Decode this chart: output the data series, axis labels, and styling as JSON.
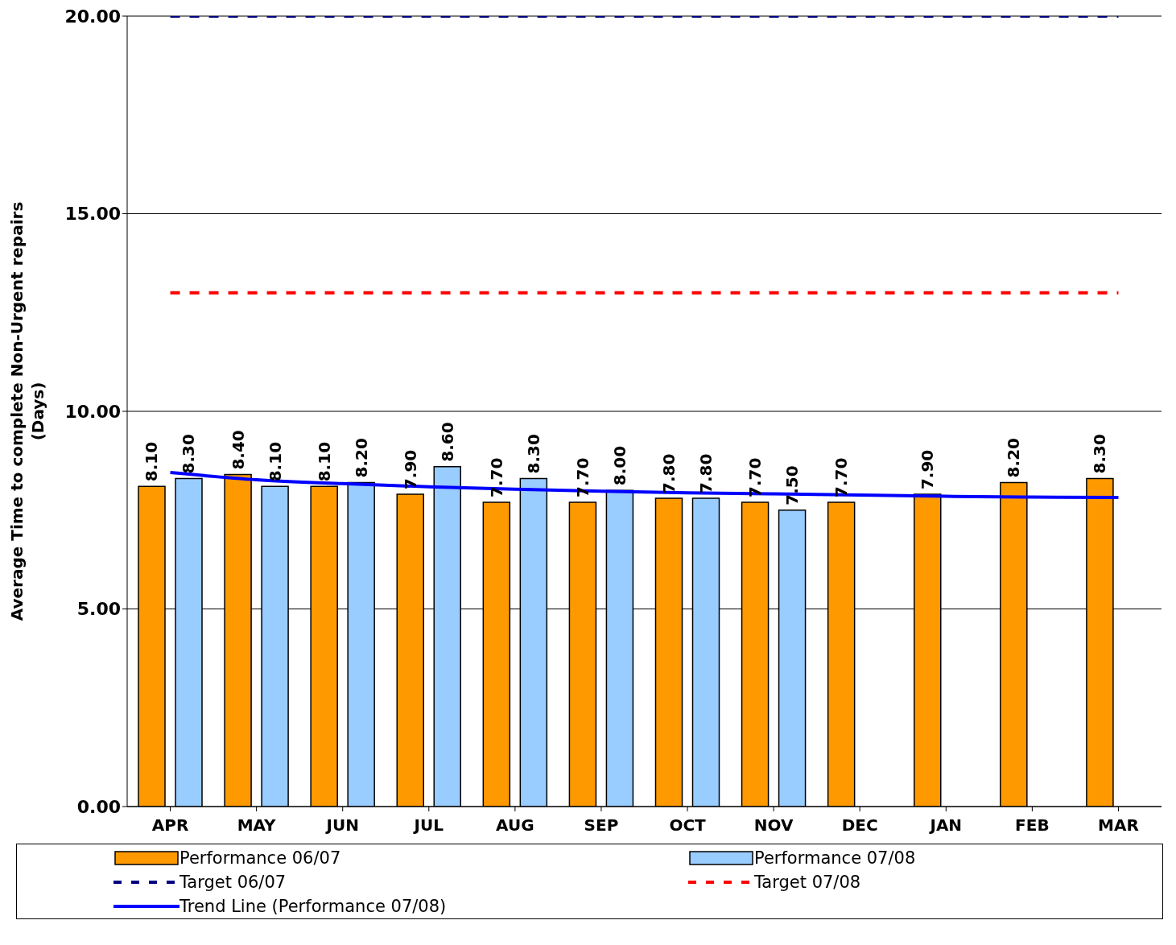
{
  "chart_data": {
    "type": "bar",
    "ylabel": "Average Time to complete Non-Urgent repairs (Days)",
    "categories": [
      "APR",
      "MAY",
      "JUN",
      "JUL",
      "AUG",
      "SEP",
      "OCT",
      "NOV",
      "DEC",
      "JAN",
      "FEB",
      "MAR"
    ],
    "series": [
      {
        "name": "Performance 06/07",
        "color": "#ff9900",
        "values": [
          8.1,
          8.4,
          8.1,
          7.9,
          7.7,
          7.7,
          7.8,
          7.7,
          7.7,
          7.9,
          8.2,
          8.3
        ],
        "value_labels": [
          "8.10",
          "8.40",
          "8.10",
          "7.90",
          "7.70",
          "7.70",
          "7.80",
          "7.70",
          "7.70",
          "7.90",
          "8.20",
          "8.30"
        ]
      },
      {
        "name": "Performance 07/08",
        "color": "#99ccff",
        "values": [
          8.3,
          8.1,
          8.2,
          8.6,
          8.3,
          8.0,
          7.8,
          7.5,
          null,
          null,
          null,
          null
        ],
        "value_labels": [
          "8.30",
          "8.10",
          "8.20",
          "8.60",
          "8.30",
          "8.00",
          "7.80",
          "7.50",
          null,
          null,
          null,
          null
        ]
      },
      {
        "name": "Target 06/07",
        "type": "line",
        "color": "#000080",
        "line_style": "dashed",
        "values": [
          20,
          20,
          20,
          20,
          20,
          20,
          20,
          20,
          20,
          20,
          20,
          20
        ]
      },
      {
        "name": "Target 07/08",
        "type": "line",
        "color": "#ff0000",
        "line_style": "dashed",
        "values": [
          13,
          13,
          13,
          13,
          13,
          13,
          13,
          13,
          13,
          13,
          13,
          13
        ]
      },
      {
        "name": "Trend Line (Performance 07/08)",
        "type": "line",
        "color": "#0000ff",
        "line_style": "solid",
        "x": [
          "APR",
          "MAY",
          "JUN",
          "JUL",
          "AUG",
          "SEP",
          "OCT",
          "NOV",
          "DEC",
          "JAN",
          "FEB",
          "MAR"
        ],
        "values": [
          8.45,
          8.27,
          8.17,
          8.09,
          8.03,
          7.98,
          7.94,
          7.91,
          7.88,
          7.85,
          7.83,
          7.82
        ]
      }
    ],
    "ylim": [
      0,
      20
    ],
    "yticks": [
      {
        "value": 0,
        "label": "0.00"
      },
      {
        "value": 5,
        "label": "5.00"
      },
      {
        "value": 10,
        "label": "10.00"
      },
      {
        "value": 15,
        "label": "15.00"
      },
      {
        "value": 20,
        "label": "20.00"
      }
    ],
    "grid": "y",
    "legend": "bottom",
    "marker": "none"
  }
}
